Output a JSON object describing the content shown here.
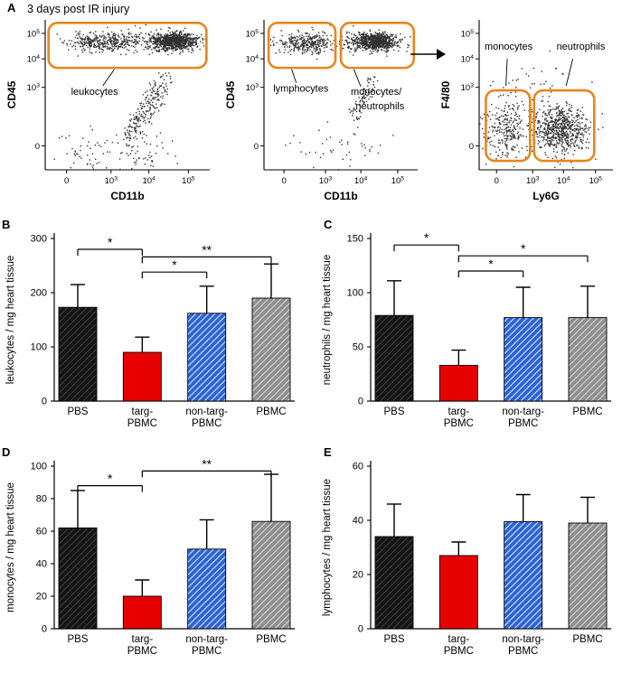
{
  "labels": {
    "panel_a": "A",
    "panel_b": "B",
    "panel_c": "C",
    "panel_d": "D",
    "panel_e": "E",
    "title": "3 days post IR injury"
  },
  "style": {
    "gate_color": "#e7861b",
    "point_color": "#161616",
    "axis_color": "#000000",
    "bar_styles": [
      {
        "type": "hatch",
        "bg": "#141414",
        "stripe": "#3f3f3f"
      },
      {
        "type": "solid",
        "bg": "#e60000"
      },
      {
        "type": "hatch",
        "bg": "#2b63d6",
        "stripe": "#dbe7ff"
      },
      {
        "type": "hatch",
        "bg": "#8e8e8e",
        "stripe": "#d8d8d8"
      }
    ]
  },
  "chart_data": [
    {
      "type": "scatter",
      "panel": "A",
      "id": "gating-all-leukocytes",
      "xlabel": "CD11b",
      "ylabel": "CD45",
      "xticklabels": [
        "0",
        "10^3",
        "10^4",
        "10^5"
      ],
      "yticklabels": [
        "0",
        "10^3",
        "10^4",
        "10^5"
      ],
      "gates": [
        {
          "name": "leukocytes",
          "x": 0.02,
          "y": 0.68,
          "w": 0.96,
          "h": 0.3
        }
      ],
      "annotations": [
        {
          "text": "leukocytes",
          "x": 0.3,
          "y": 0.5,
          "line": [
            0.35,
            0.56,
            0.42,
            0.67
          ]
        }
      ],
      "clusters": [
        {
          "type": "gauss",
          "cx": 0.34,
          "cy": 0.85,
          "sx": 0.1,
          "sy": 0.032,
          "n": 330
        },
        {
          "type": "gauss",
          "cx": 0.78,
          "cy": 0.86,
          "sx": 0.07,
          "sy": 0.028,
          "n": 900
        },
        {
          "type": "gauss",
          "cx": 0.57,
          "cy": 0.85,
          "sx": 0.13,
          "sy": 0.04,
          "n": 110
        },
        {
          "type": "line",
          "x1": 0.5,
          "y1": 0.2,
          "x2": 0.73,
          "y2": 0.6,
          "jx": 0.05,
          "jy": 0.07,
          "n": 230
        },
        {
          "type": "gauss",
          "cx": 0.28,
          "cy": 0.13,
          "sx": 0.19,
          "sy": 0.08,
          "n": 70
        },
        {
          "type": "gauss",
          "cx": 0.6,
          "cy": 0.1,
          "sx": 0.1,
          "sy": 0.06,
          "n": 40
        }
      ]
    },
    {
      "type": "scatter",
      "panel": "A",
      "id": "gating-lymphocytes-vs-myeloid",
      "xlabel": "CD11b",
      "ylabel": "CD45",
      "xticklabels": [
        "0",
        "10^3",
        "10^4",
        "10^5"
      ],
      "yticklabels": [
        "0",
        "10^3",
        "10^4",
        "10^5"
      ],
      "gates": [
        {
          "name": "lymphocytes",
          "x": 0.03,
          "y": 0.68,
          "w": 0.435,
          "h": 0.3
        },
        {
          "name": "monocytes-neutrophils",
          "x": 0.5,
          "y": 0.68,
          "w": 0.475,
          "h": 0.3
        }
      ],
      "annotations": [
        {
          "text": "lymphocytes",
          "x": 0.24,
          "y": 0.52,
          "line": [
            0.21,
            0.58,
            0.18,
            0.67
          ]
        },
        {
          "text": "monocytes/",
          "x": 0.73,
          "y": 0.5,
          "line": [
            0.63,
            0.555,
            0.585,
            0.67
          ]
        },
        {
          "text": "neutrophils",
          "x": 0.755,
          "y": 0.405
        }
      ],
      "clusters": [
        {
          "type": "gauss",
          "cx": 0.27,
          "cy": 0.845,
          "sx": 0.09,
          "sy": 0.032,
          "n": 310
        },
        {
          "type": "gauss",
          "cx": 0.72,
          "cy": 0.855,
          "sx": 0.075,
          "sy": 0.028,
          "n": 820
        },
        {
          "type": "gauss",
          "cx": 0.5,
          "cy": 0.85,
          "sx": 0.17,
          "sy": 0.04,
          "n": 70
        },
        {
          "type": "line",
          "x1": 0.58,
          "y1": 0.34,
          "x2": 0.71,
          "y2": 0.6,
          "jx": 0.04,
          "jy": 0.06,
          "n": 80
        },
        {
          "type": "gauss",
          "cx": 0.45,
          "cy": 0.14,
          "sx": 0.2,
          "sy": 0.08,
          "n": 45
        }
      ]
    },
    {
      "type": "scatter",
      "panel": "A",
      "id": "gating-monocytes-vs-neutrophils",
      "xlabel": "Ly6G",
      "ylabel": "F4/80",
      "xticklabels": [
        "0",
        "10^3",
        "10^4",
        "10^5"
      ],
      "yticklabels": [
        "0",
        "10^3",
        "10^4",
        "10^5"
      ],
      "gates": [
        {
          "name": "monocytes",
          "x": 0.05,
          "y": 0.06,
          "w": 0.33,
          "h": 0.47
        },
        {
          "name": "neutrophils",
          "x": 0.41,
          "y": 0.06,
          "w": 0.45,
          "h": 0.47
        }
      ],
      "annotations": [
        {
          "text": "monocytes",
          "x": 0.22,
          "y": 0.8,
          "line": [
            0.21,
            0.74,
            0.2,
            0.56
          ]
        },
        {
          "text": "neutrophils",
          "x": 0.76,
          "y": 0.8,
          "line": [
            0.7,
            0.74,
            0.65,
            0.56
          ]
        }
      ],
      "clusters": [
        {
          "type": "gauss",
          "cx": 0.2,
          "cy": 0.27,
          "sx": 0.085,
          "sy": 0.1,
          "n": 270
        },
        {
          "type": "gauss",
          "cx": 0.6,
          "cy": 0.27,
          "sx": 0.1,
          "sy": 0.08,
          "n": 680
        },
        {
          "type": "gauss",
          "cx": 0.42,
          "cy": 0.58,
          "sx": 0.18,
          "sy": 0.12,
          "n": 35
        }
      ]
    },
    {
      "type": "bar",
      "panel": "B",
      "ylabel": "leukocytes / mg heart tissue",
      "ylim": [
        0,
        300
      ],
      "yticks": [
        0,
        100,
        200,
        300
      ],
      "categories": [
        "PBS",
        "targ-PBMC",
        "non-targ-PBMC",
        "PBMC"
      ],
      "values": [
        173,
        90,
        162,
        190
      ],
      "errors_up": [
        42,
        28,
        50,
        63
      ],
      "significance": [
        {
          "from": 0,
          "to": 1,
          "y": 280,
          "label": "*"
        },
        {
          "from": 1,
          "to": 3,
          "y": 266,
          "label": "**"
        },
        {
          "from": 1,
          "to": 2,
          "y": 238,
          "label": "*"
        }
      ]
    },
    {
      "type": "bar",
      "panel": "C",
      "ylabel": "neutrophils / mg heart tissue",
      "ylim": [
        0,
        150
      ],
      "yticks": [
        0,
        50,
        100,
        150
      ],
      "categories": [
        "PBS",
        "targ-PBMC",
        "non-targ-PBMC",
        "PBMC"
      ],
      "values": [
        79,
        33,
        77,
        77
      ],
      "errors_up": [
        32,
        14,
        28,
        29
      ],
      "significance": [
        {
          "from": 0,
          "to": 1,
          "y": 144,
          "label": "*"
        },
        {
          "from": 1,
          "to": 3,
          "y": 134,
          "label": "*"
        },
        {
          "from": 1,
          "to": 2,
          "y": 120,
          "label": "*"
        }
      ]
    },
    {
      "type": "bar",
      "panel": "D",
      "ylabel": "monocytes / mg heart tissue",
      "ylim": [
        0,
        100
      ],
      "yticks": [
        0,
        20,
        40,
        60,
        80,
        100
      ],
      "categories": [
        "PBS",
        "targ-PBMC",
        "non-targ-PBMC",
        "PBMC"
      ],
      "values": [
        62,
        20,
        49,
        66
      ],
      "errors_up": [
        23,
        10,
        18,
        29
      ],
      "significance": [
        {
          "from": 1,
          "to": 3,
          "y": 97,
          "label": "**"
        },
        {
          "from": 0,
          "to": 1,
          "y": 88,
          "label": "*"
        }
      ]
    },
    {
      "type": "bar",
      "panel": "E",
      "ylabel": "lymphocytes / mg heart tissue",
      "ylim": [
        0,
        60
      ],
      "yticks": [
        0,
        20,
        40,
        60
      ],
      "categories": [
        "PBS",
        "targ-PBMC",
        "non-targ-PBMC",
        "PBMC"
      ],
      "values": [
        34,
        27,
        39.5,
        39
      ],
      "errors_up": [
        12,
        5,
        10,
        9.5
      ],
      "significance": []
    }
  ]
}
